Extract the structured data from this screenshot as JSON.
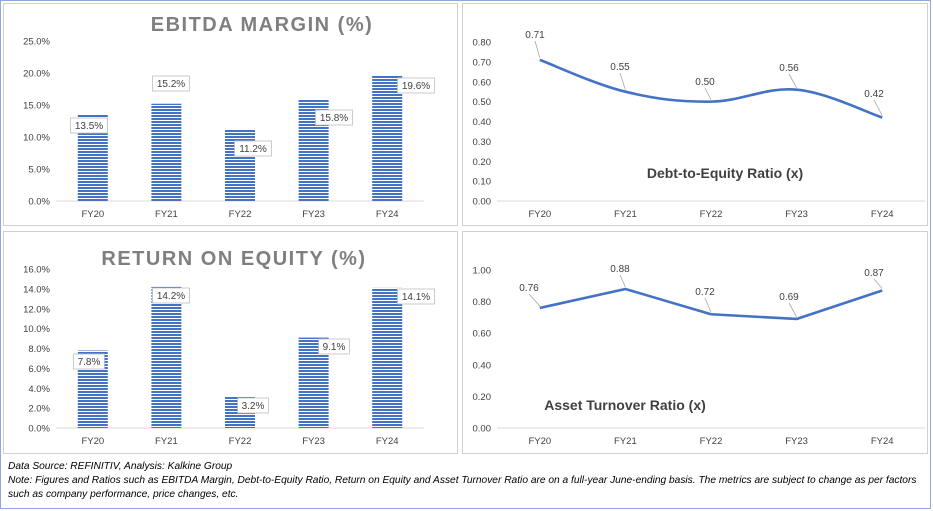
{
  "colors": {
    "bar_fill": "#4472c4",
    "bar_stripe": "#ffffff",
    "line": "#4472c4",
    "title_gray": "#7f7f7f",
    "title_dark": "#404040",
    "axis_text": "#404040",
    "label_border": "#bfbfbf"
  },
  "footer": {
    "source": "Data Source: REFINITIV, Analysis: Kalkine Group",
    "note": "Note: Figures and Ratios such as EBITDA Margin, Debt-to-Equity Ratio, Return on Equity and Asset Turnover Ratio are on a full-year June-ending basis. The metrics are subject to change as per factors such as company performance, price changes, etc."
  },
  "chart_data": [
    {
      "id": "ebitda",
      "type": "bar",
      "title": "EBITDA MARGIN (%)",
      "categories": [
        "FY20",
        "FY21",
        "FY22",
        "FY23",
        "FY24"
      ],
      "values": [
        13.5,
        15.2,
        11.2,
        15.8,
        19.6
      ],
      "data_labels": [
        "13.5%",
        "15.2%",
        "11.2%",
        "15.8%",
        "19.6%"
      ],
      "y_ticks": [
        "0.0%",
        "5.0%",
        "10.0%",
        "15.0%",
        "20.0%",
        "25.0%"
      ],
      "ylim": [
        0,
        25
      ],
      "grid": false
    },
    {
      "id": "de",
      "type": "line",
      "title": "Debt-to-Equity Ratio (x)",
      "categories": [
        "FY20",
        "FY21",
        "FY22",
        "FY23",
        "FY24"
      ],
      "values": [
        0.71,
        0.55,
        0.5,
        0.56,
        0.42
      ],
      "data_labels": [
        "0.71",
        "0.55",
        "0.50",
        "0.56",
        "0.42"
      ],
      "y_ticks": [
        "0.00",
        "0.10",
        "0.20",
        "0.30",
        "0.40",
        "0.50",
        "0.60",
        "0.70",
        "0.80"
      ],
      "ylim": [
        0,
        0.8
      ],
      "grid": false
    },
    {
      "id": "roe",
      "type": "bar",
      "title": "RETURN ON EQUITY (%)",
      "categories": [
        "FY20",
        "FY21",
        "FY22",
        "FY23",
        "FY24"
      ],
      "values": [
        7.8,
        14.2,
        3.2,
        9.1,
        14.1
      ],
      "data_labels": [
        "7.8%",
        "14.2%",
        "3.2%",
        "9.1%",
        "14.1%"
      ],
      "y_ticks": [
        "0.0%",
        "2.0%",
        "4.0%",
        "6.0%",
        "8.0%",
        "10.0%",
        "12.0%",
        "14.0%",
        "16.0%"
      ],
      "ylim": [
        0,
        16
      ],
      "grid": false
    },
    {
      "id": "at",
      "type": "line",
      "title": "Asset Turnover Ratio (x)",
      "categories": [
        "FY20",
        "FY21",
        "FY22",
        "FY23",
        "FY24"
      ],
      "values": [
        0.76,
        0.88,
        0.72,
        0.69,
        0.87
      ],
      "data_labels": [
        "0.76",
        "0.88",
        "0.72",
        "0.69",
        "0.87"
      ],
      "y_ticks": [
        "0.00",
        "0.20",
        "0.40",
        "0.60",
        "0.80",
        "1.00"
      ],
      "ylim": [
        0,
        1.0
      ],
      "grid": false
    }
  ]
}
